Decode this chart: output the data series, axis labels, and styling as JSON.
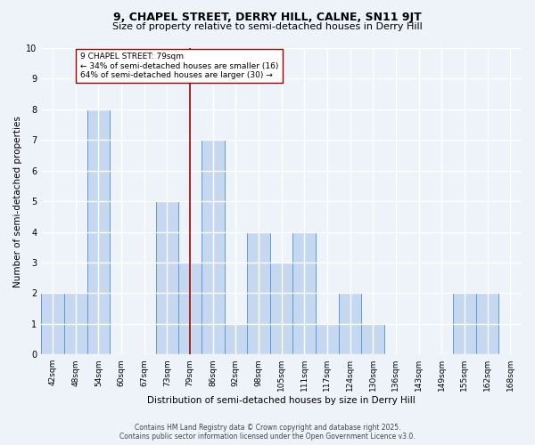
{
  "title1": "9, CHAPEL STREET, DERRY HILL, CALNE, SN11 9JT",
  "title2": "Size of property relative to semi-detached houses in Derry Hill",
  "xlabel": "Distribution of semi-detached houses by size in Derry Hill",
  "ylabel": "Number of semi-detached properties",
  "categories": [
    "42sqm",
    "48sqm",
    "54sqm",
    "60sqm",
    "67sqm",
    "73sqm",
    "79sqm",
    "86sqm",
    "92sqm",
    "98sqm",
    "105sqm",
    "111sqm",
    "117sqm",
    "124sqm",
    "130sqm",
    "136sqm",
    "143sqm",
    "149sqm",
    "155sqm",
    "162sqm",
    "168sqm"
  ],
  "values": [
    2,
    2,
    8,
    0,
    0,
    5,
    3,
    7,
    1,
    4,
    3,
    4,
    1,
    2,
    1,
    0,
    0,
    0,
    2,
    2,
    0
  ],
  "bar_color": "#c5d8f0",
  "bar_edge_color": "#5b9bd5",
  "ref_line_index": 6,
  "ref_line_color": "#9b0000",
  "annotation_text": "9 CHAPEL STREET: 79sqm\n← 34% of semi-detached houses are smaller (16)\n64% of semi-detached houses are larger (30) →",
  "annotation_box_color": "#ffffff",
  "annotation_box_edge_color": "#9b0000",
  "ylim": [
    0,
    10
  ],
  "yticks": [
    0,
    1,
    2,
    3,
    4,
    5,
    6,
    7,
    8,
    9,
    10
  ],
  "footer": "Contains HM Land Registry data © Crown copyright and database right 2025.\nContains public sector information licensed under the Open Government Licence v3.0.",
  "bg_color": "#eef2f9",
  "grid_color": "#ffffff",
  "title1_fontsize": 9,
  "title2_fontsize": 8,
  "axis_label_fontsize": 7.5,
  "tick_fontsize": 6.5,
  "annotation_fontsize": 6.5,
  "footer_fontsize": 5.5
}
